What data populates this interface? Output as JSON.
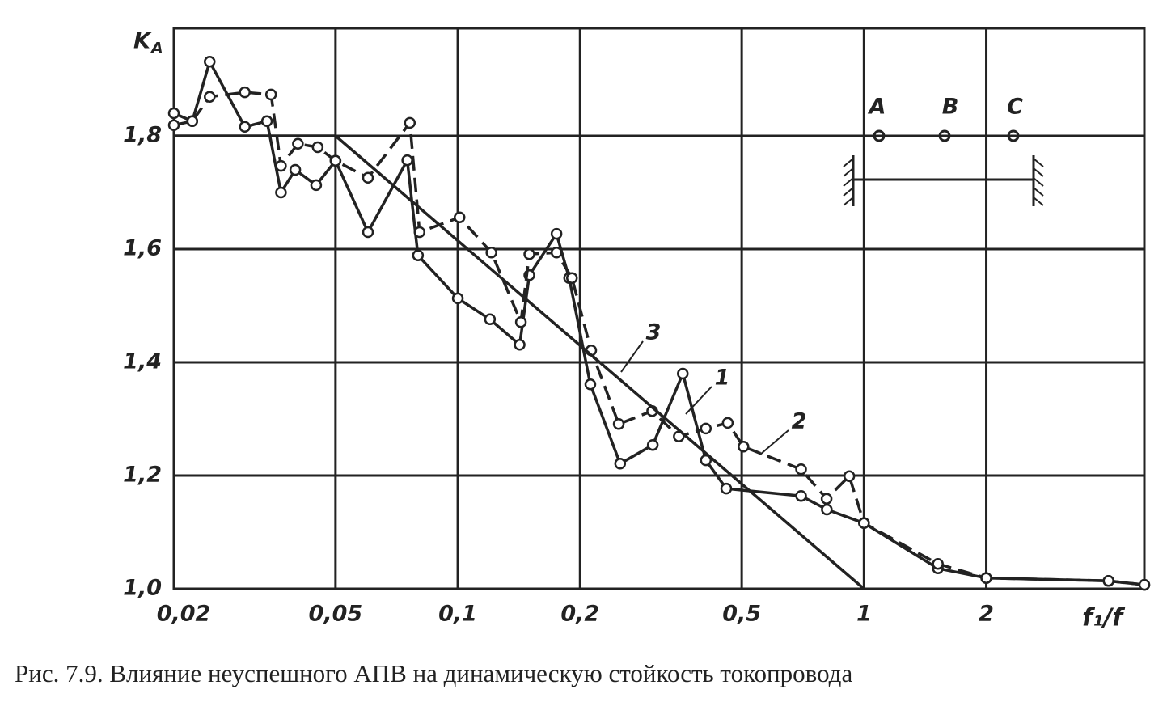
{
  "chart_data": {
    "type": "line",
    "y_label": "K",
    "y_label_sub": "A",
    "x_label": "f₁/f",
    "caption": "Рис. 7.9. Влияние неуспешного АПВ на динамическую стойкость токопровода",
    "xscale": "log",
    "xlim": [
      0.02,
      4.9
    ],
    "ylim": [
      1.0,
      1.99
    ],
    "xticks": [
      {
        "value": 0.02,
        "label": "0,02"
      },
      {
        "value": 0.05,
        "label": "0,05"
      },
      {
        "value": 0.1,
        "label": "0,1"
      },
      {
        "value": 0.2,
        "label": "0,2"
      },
      {
        "value": 0.5,
        "label": "0,5"
      },
      1,
      2
    ],
    "yticks": [
      {
        "value": 1.0,
        "label": "1,0"
      },
      {
        "value": 1.2,
        "label": "1,2"
      },
      {
        "value": 1.4,
        "label": "1,4"
      },
      {
        "value": 1.6,
        "label": "1,6"
      },
      {
        "value": 1.8,
        "label": "1,8"
      }
    ],
    "grid": true,
    "series": [
      {
        "name": "1",
        "color": "#222",
        "dash": false,
        "marker": true,
        "x": [
          0.02,
          0.0222,
          0.0245,
          0.0299,
          0.0339,
          0.0367,
          0.0398,
          0.0448,
          0.05,
          0.0601,
          0.0751,
          0.0798,
          0.1,
          0.12,
          0.142,
          0.15,
          0.175,
          0.188,
          0.212,
          0.251,
          0.302,
          0.358,
          0.408,
          0.458,
          0.7,
          0.81,
          1,
          1.52,
          2,
          4.0,
          4.9
        ],
        "values": [
          1.819,
          1.826,
          1.931,
          1.816,
          1.826,
          1.7,
          1.74,
          1.713,
          1.756,
          1.63,
          1.757,
          1.589,
          1.513,
          1.476,
          1.431,
          1.554,
          1.627,
          1.549,
          1.361,
          1.221,
          1.254,
          1.38,
          1.227,
          1.177,
          1.164,
          1.14,
          1.116,
          1.036,
          1.019,
          1.014,
          1.007
        ]
      },
      {
        "name": "2",
        "color": "#222",
        "dash": true,
        "marker": true,
        "x": [
          0.02,
          0.0222,
          0.0245,
          0.0299,
          0.0347,
          0.0367,
          0.0404,
          0.0452,
          0.05,
          0.0601,
          0.0762,
          0.0805,
          0.101,
          0.121,
          0.143,
          0.15,
          0.175,
          0.191,
          0.213,
          0.249,
          0.301,
          0.35,
          0.408,
          0.462,
          0.505,
          0.7,
          0.809,
          0.92,
          1,
          1.52,
          2,
          4.0,
          4.9
        ],
        "values": [
          1.84,
          1.826,
          1.869,
          1.877,
          1.873,
          1.747,
          1.786,
          1.78,
          1.756,
          1.726,
          1.823,
          1.63,
          1.656,
          1.594,
          1.471,
          1.591,
          1.594,
          1.549,
          1.421,
          1.291,
          1.314,
          1.269,
          1.283,
          1.293,
          1.251,
          1.211,
          1.159,
          1.199,
          1.116,
          1.044,
          1.019,
          1.014,
          1.007
        ]
      },
      {
        "name": "3",
        "color": "#222",
        "dash": false,
        "marker": false,
        "x": [
          0.02,
          0.05,
          1
        ],
        "values": [
          1.8,
          1.8,
          1.0
        ]
      }
    ],
    "inset_labels": [
      "A",
      "B",
      "C"
    ]
  }
}
